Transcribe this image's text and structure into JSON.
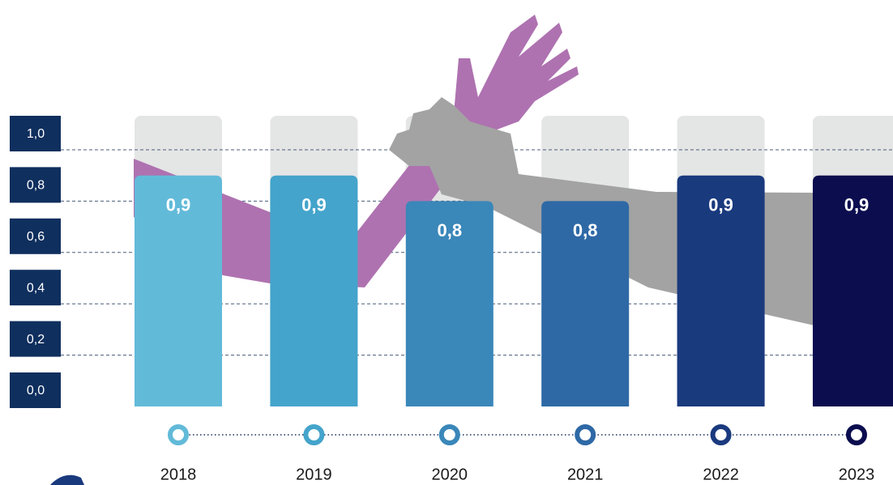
{
  "chart_data": {
    "type": "bar",
    "categories": [
      "2018",
      "2019",
      "2020",
      "2021",
      "2022",
      "2023"
    ],
    "values": [
      0.9,
      0.9,
      0.8,
      0.8,
      0.9,
      0.9
    ],
    "value_labels": [
      "0,9",
      "0,9",
      "0,8",
      "0,8",
      "0,9",
      "0,9"
    ],
    "colors": [
      "#62bad9",
      "#44a4cb",
      "#3a87b9",
      "#2e69a6",
      "#1a3a7e",
      "#0b0d4f"
    ],
    "ylim": [
      0,
      1
    ],
    "yticks": [
      {
        "value": 0,
        "label": "0,0"
      },
      {
        "value": 0.2,
        "label": "0,2"
      },
      {
        "value": 0.4,
        "label": "0,4"
      },
      {
        "value": 0.6,
        "label": "0,6"
      },
      {
        "value": 0.8,
        "label": "0,8"
      },
      {
        "value": 1,
        "label": "1,0"
      }
    ],
    "grid": true
  }
}
